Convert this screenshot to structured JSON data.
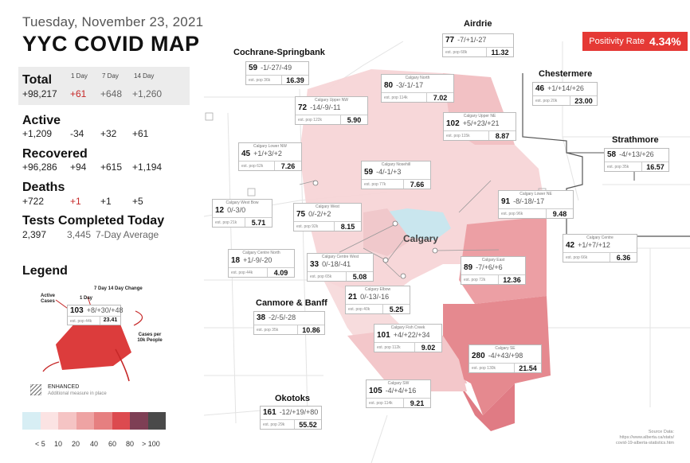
{
  "date": "Tuesday, November 23, 2021",
  "title": "YYC COVID MAP",
  "stats": {
    "col_1day": "1 Day",
    "col_7day": "7 Day",
    "col_14day": "14 Day",
    "total": {
      "label": "Total",
      "value": "+98,217",
      "d1": "+61",
      "d7": "+648",
      "d14": "+1,260"
    },
    "active": {
      "label": "Active",
      "value": "+1,209",
      "d1": "-34",
      "d7": "+32",
      "d14": "+61"
    },
    "recovered": {
      "label": "Recovered",
      "value": "+96,286",
      "d1": "+94",
      "d7": "+615",
      "d14": "+1,194"
    },
    "deaths": {
      "label": "Deaths",
      "value": "+722",
      "d1": "+1",
      "d7": "+1",
      "d14": "+5"
    },
    "tests": {
      "label": "Tests Completed Today",
      "value": "2,397",
      "avg": "3,445",
      "avg_label": "7-Day Average"
    }
  },
  "legend": {
    "title": "Legend",
    "lbl_active": "Active Cases",
    "lbl_1day": "1 Day",
    "lbl_7day_14day": "7 Day  14 Day Change",
    "lbl_cases_per": "Cases per 10k People",
    "example_cases": "103",
    "example_change": "+8/+30/+48",
    "example_pop": "est. pop 44k",
    "example_rate": "23.41",
    "enhanced": "ENHANCED",
    "enhanced_sub": "Additional measure in place",
    "scale_labels": [
      "< 5",
      "10",
      "20",
      "40",
      "60",
      "80",
      "> 100"
    ],
    "scale_colors": [
      "#d7eef4",
      "#fbe3e3",
      "#f5c4c4",
      "#eea3a3",
      "#e67f80",
      "#dc4a4f",
      "#7e3f55",
      "#4a4a4a"
    ]
  },
  "positivity": {
    "label": "Positivity Rate",
    "value": "4.34%"
  },
  "regions": {
    "airdrie": {
      "label": "Airdrie",
      "cases": "77",
      "change": "-7/+1/-27",
      "pop": "est. pop 68k",
      "rate": "11.32"
    },
    "cochrane": {
      "label": "Cochrane-Springbank",
      "cases": "59",
      "change": "-1/-27/-49",
      "pop": "est. pop 36k",
      "rate": "16.39"
    },
    "chestermere": {
      "label": "Chestermere",
      "cases": "46",
      "change": "+1/+14/+26",
      "pop": "est. pop 20k",
      "rate": "23.00"
    },
    "strathmore": {
      "label": "Strathmore",
      "cases": "58",
      "change": "-4/+13/+26",
      "pop": "est. pop 35k",
      "rate": "16.57"
    },
    "canmore": {
      "label": "Canmore & Banff",
      "cases": "38",
      "change": "-2/-5/-28",
      "pop": "est. pop 35k",
      "rate": "10.86"
    },
    "okotoks": {
      "label": "Okotoks",
      "cases": "161",
      "change": "-12/+19/+80",
      "pop": "est. pop 29k",
      "rate": "55.52"
    },
    "north": {
      "label": "Calgary North",
      "cases": "80",
      "change": "-3/-1/-17",
      "pop": "est. pop 114k",
      "rate": "7.02"
    },
    "upper_nw": {
      "label": "Calgary Upper NW",
      "cases": "72",
      "change": "-14/-9/-11",
      "pop": "est. pop 122k",
      "rate": "5.90"
    },
    "upper_ne": {
      "label": "Calgary Upper NE",
      "cases": "102",
      "change": "+5/+23/+21",
      "pop": "est. pop 115k",
      "rate": "8.87"
    },
    "lower_nw": {
      "label": "Calgary Lower NW",
      "cases": "45",
      "change": "+1/+3/+2",
      "pop": "est. pop 62k",
      "rate": "7.26"
    },
    "nosehill": {
      "label": "Calgary Nosehill",
      "cases": "59",
      "change": "-4/-1/+3",
      "pop": "est. pop 77k",
      "rate": "7.66"
    },
    "lower_ne": {
      "label": "Calgary Lower NE",
      "cases": "91",
      "change": "-8/-18/-17",
      "pop": "est. pop 96k",
      "rate": "9.48"
    },
    "westbow": {
      "label": "Calgary West Bow",
      "cases": "12",
      "change": "0/-3/0",
      "pop": "est. pop 21k",
      "rate": "5.71"
    },
    "west": {
      "label": "Calgary West",
      "cases": "75",
      "change": "0/-2/+2",
      "pop": "est. pop 92k",
      "rate": "8.15"
    },
    "centre": {
      "label": "Calgary Centre",
      "cases": "42",
      "change": "+1/+7/+12",
      "pop": "est. pop 66k",
      "rate": "6.36"
    },
    "centre_north": {
      "label": "Calgary Centre North",
      "cases": "18",
      "change": "+1/-9/-20",
      "pop": "est. pop 44k",
      "rate": "4.09"
    },
    "centre_west": {
      "label": "Calgary Centre West",
      "cases": "33",
      "change": "0/-18/-41",
      "pop": "est. pop 65k",
      "rate": "5.08"
    },
    "east": {
      "label": "Calgary East",
      "cases": "89",
      "change": "-7/+6/+6",
      "pop": "est. pop 72k",
      "rate": "12.36"
    },
    "elbow": {
      "label": "Calgary Elbow",
      "cases": "21",
      "change": "0/-13/-16",
      "pop": "est. pop 40k",
      "rate": "5.25"
    },
    "fishcreek": {
      "label": "Calgary Fish Creek",
      "cases": "101",
      "change": "+4/+22/+34",
      "pop": "est. pop 112k",
      "rate": "9.02"
    },
    "se": {
      "label": "Calgary SE",
      "cases": "280",
      "change": "-4/+43/+98",
      "pop": "est. pop 130k",
      "rate": "21.54"
    },
    "sw": {
      "label": "Calgary SW",
      "cases": "105",
      "change": "-4/+4/+16",
      "pop": "est. pop 114k",
      "rate": "9.21"
    }
  },
  "map_city_label": "Calgary",
  "source": {
    "line1": "Source Data:",
    "line2": "https://www.alberta.ca/stats/",
    "line3": "covid-19-alberta-statistics.htm"
  }
}
